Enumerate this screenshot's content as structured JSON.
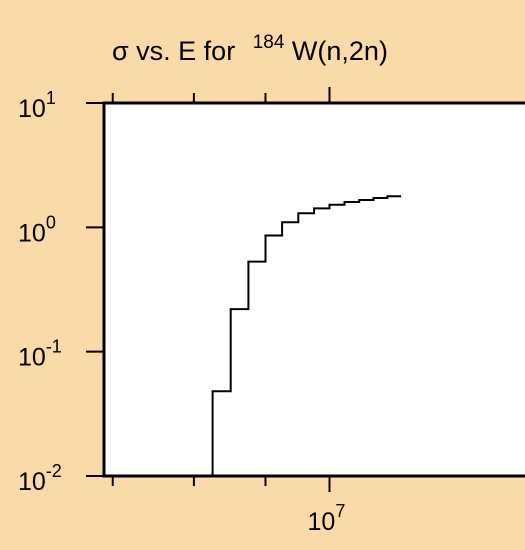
{
  "chart_data": {
    "type": "line",
    "step": true,
    "title": {
      "prefix": "σ vs. E for",
      "isotope_mass": "184",
      "reaction": "W(n,2n)"
    },
    "xlabel": "",
    "ylabel": "",
    "x_scale": "log",
    "y_scale": "log",
    "xlim": [
      6900000,
      14000000
    ],
    "ylim": [
      0.01,
      10
    ],
    "x_ticks": [
      {
        "base": "10",
        "exp": "7"
      }
    ],
    "y_ticks": [
      {
        "base": "10",
        "exp": "1"
      },
      {
        "base": "10",
        "exp": "0"
      },
      {
        "base": "10",
        "exp": "-1"
      },
      {
        "base": "10",
        "exp": "-2"
      }
    ],
    "series": [
      {
        "x": [
          8000000,
          8250000,
          8500000,
          8750000,
          9000000,
          9250000,
          9500000,
          9750000,
          10000000,
          10250000,
          10500000,
          10750000,
          11000000,
          11250000
        ],
        "y": [
          0.01,
          0.048,
          0.22,
          0.53,
          0.86,
          1.1,
          1.3,
          1.42,
          1.52,
          1.6,
          1.66,
          1.72,
          1.78,
          1.78
        ]
      }
    ]
  },
  "colors": {
    "background": "#fadaa9",
    "plot_area": "#ffffff",
    "line": "#000000"
  }
}
